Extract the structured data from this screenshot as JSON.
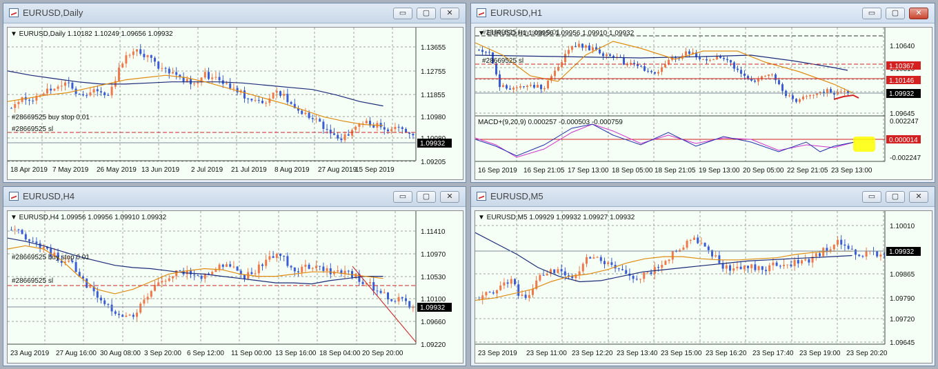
{
  "windows": [
    {
      "key": "daily",
      "title": "EURUSD,Daily",
      "active": false,
      "info": "EURUSD,Daily  1.10182 1.10249 1.09656 1.09932",
      "order_labels": [
        "#28669525 buy stop 0.01",
        "#28669525 sl"
      ],
      "price_labels": [
        "1.13655",
        "1.12755",
        "1.11855",
        "1.10980",
        "1.10080",
        "1.09205"
      ],
      "current_price": "1.09932",
      "time_labels": [
        "18 Apr 2019",
        "7 May 2019",
        "26 May 2019",
        "13 Jun 2019",
        "2 Jul 2019",
        "21 Jul 2019",
        "8 Aug 2019",
        "27 Aug 2019",
        "15 Sep 2019"
      ]
    },
    {
      "key": "h1",
      "title": "EURUSD,H1",
      "active": true,
      "info": "EURUSD,H1  1.09956 1.09956 1.09910 1.09932",
      "order_labels": [
        "#28669525 buy stop 0.01",
        "#28669525 sl"
      ],
      "price_labels": [
        "1.10640",
        "1.10310",
        "1.09645"
      ],
      "red_price_labels": [
        "1.10367",
        "1.10146"
      ],
      "current_price": "1.09932",
      "macd_info": "MACD+(9,20,9) 0.000257 -0.000503 -0.000759",
      "macd_labels": [
        "0.002247",
        "-0.002247"
      ],
      "macd_current": "0.000014",
      "time_labels": [
        "16 Sep 2019",
        "16 Sep 21:05",
        "17 Sep 13:00",
        "18 Sep 05:00",
        "18 Sep 21:05",
        "19 Sep 13:00",
        "20 Sep 05:00",
        "22 Sep 21:05",
        "23 Sep 13:00"
      ]
    },
    {
      "key": "h4",
      "title": "EURUSD,H4",
      "active": false,
      "info": "EURUSD,H4  1.09956 1.09956 1.09910 1.09932",
      "order_labels": [
        "#28669525 buy stop 0.01",
        "#28669525 sl"
      ],
      "price_labels": [
        "1.11410",
        "1.10970",
        "1.10530",
        "1.10100",
        "1.09660",
        "1.09220"
      ],
      "current_price": "1.09932",
      "time_labels": [
        "23 Aug 2019",
        "27 Aug 16:00",
        "30 Aug 08:00",
        "3 Sep 20:00",
        "6 Sep 12:00",
        "11 Sep 00:00",
        "13 Sep 16:00",
        "18 Sep 04:00",
        "20 Sep 20:00"
      ]
    },
    {
      "key": "m5",
      "title": "EURUSD,M5",
      "active": false,
      "info": "EURUSD,M5  1.09929 1.09932 1.09927 1.09932",
      "order_labels": [],
      "price_labels": [
        "1.10010",
        "1.09865",
        "1.09790",
        "1.09720",
        "1.09645"
      ],
      "current_price": "1.09932",
      "time_labels": [
        "23 Sep 2019",
        "23 Sep 11:00",
        "23 Sep 12:20",
        "23 Sep 13:40",
        "23 Sep 15:00",
        "23 Sep 16:20",
        "23 Sep 17:40",
        "23 Sep 19:00",
        "23 Sep 20:20"
      ]
    }
  ],
  "window_buttons": {
    "minimize": "▭",
    "maximize": "▢",
    "close": "✕"
  },
  "colors": {
    "bull": "#f0784a",
    "bear": "#3b5cd6",
    "ma_fast": "#e08a10",
    "ma_slow": "#1a2a7a",
    "order_line": "#d42020",
    "grid": "#9aa59a",
    "bg": "#f5fff5",
    "macd_signal": "#d030d0",
    "macd_main": "#2030b0",
    "highlight": "#ffff00"
  }
}
